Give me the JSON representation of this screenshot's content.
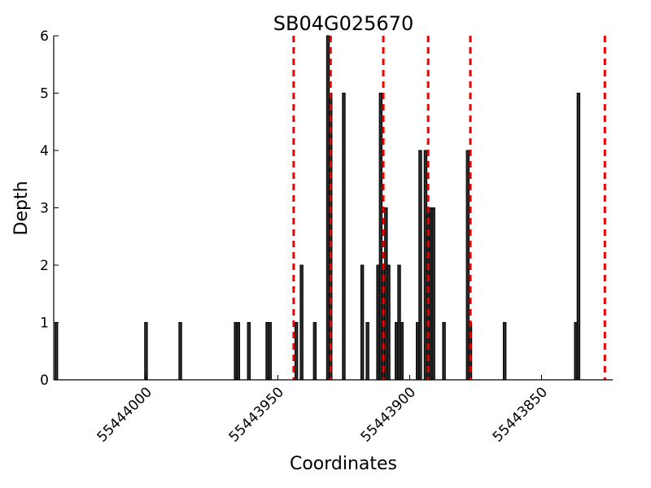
{
  "chart_data": {
    "type": "bar",
    "title": "SB04G025670",
    "xlabel": "Coordinates",
    "ylabel": "Depth",
    "x_reversed": true,
    "xlim": [
      55444035,
      55443823
    ],
    "ylim": [
      0,
      6
    ],
    "x_ticks": [
      55444000,
      55443950,
      55443900,
      55443850
    ],
    "y_ticks": [
      0,
      1,
      2,
      3,
      4,
      5,
      6
    ],
    "grid": false,
    "legend": "none",
    "colors": {
      "bars": "#2b2b2b",
      "markers": "#ee0000"
    },
    "bars": [
      {
        "x": 55444034,
        "y": 1
      },
      {
        "x": 55444000,
        "y": 1
      },
      {
        "x": 55443987,
        "y": 1
      },
      {
        "x": 55443966,
        "y": 1
      },
      {
        "x": 55443965,
        "y": 1
      },
      {
        "x": 55443961,
        "y": 1
      },
      {
        "x": 55443954,
        "y": 1
      },
      {
        "x": 55443953,
        "y": 1
      },
      {
        "x": 55443943,
        "y": 1
      },
      {
        "x": 55443941,
        "y": 2
      },
      {
        "x": 55443936,
        "y": 1
      },
      {
        "x": 55443931,
        "y": 6
      },
      {
        "x": 55443930,
        "y": 5
      },
      {
        "x": 55443925,
        "y": 5
      },
      {
        "x": 55443918,
        "y": 2
      },
      {
        "x": 55443916,
        "y": 1
      },
      {
        "x": 55443912,
        "y": 2
      },
      {
        "x": 55443911,
        "y": 5
      },
      {
        "x": 55443910,
        "y": 2
      },
      {
        "x": 55443909,
        "y": 3
      },
      {
        "x": 55443908,
        "y": 2
      },
      {
        "x": 55443905,
        "y": 1
      },
      {
        "x": 55443904,
        "y": 2
      },
      {
        "x": 55443903,
        "y": 1
      },
      {
        "x": 55443897,
        "y": 1
      },
      {
        "x": 55443896,
        "y": 4
      },
      {
        "x": 55443894,
        "y": 4
      },
      {
        "x": 55443893,
        "y": 3
      },
      {
        "x": 55443892,
        "y": 3
      },
      {
        "x": 55443891,
        "y": 3
      },
      {
        "x": 55443887,
        "y": 1
      },
      {
        "x": 55443878,
        "y": 4
      },
      {
        "x": 55443877,
        "y": 1
      },
      {
        "x": 55443864,
        "y": 1
      },
      {
        "x": 55443837,
        "y": 1
      },
      {
        "x": 55443836,
        "y": 5
      }
    ],
    "markers": [
      55443944,
      55443930,
      55443910,
      55443893,
      55443877,
      55443826
    ]
  }
}
